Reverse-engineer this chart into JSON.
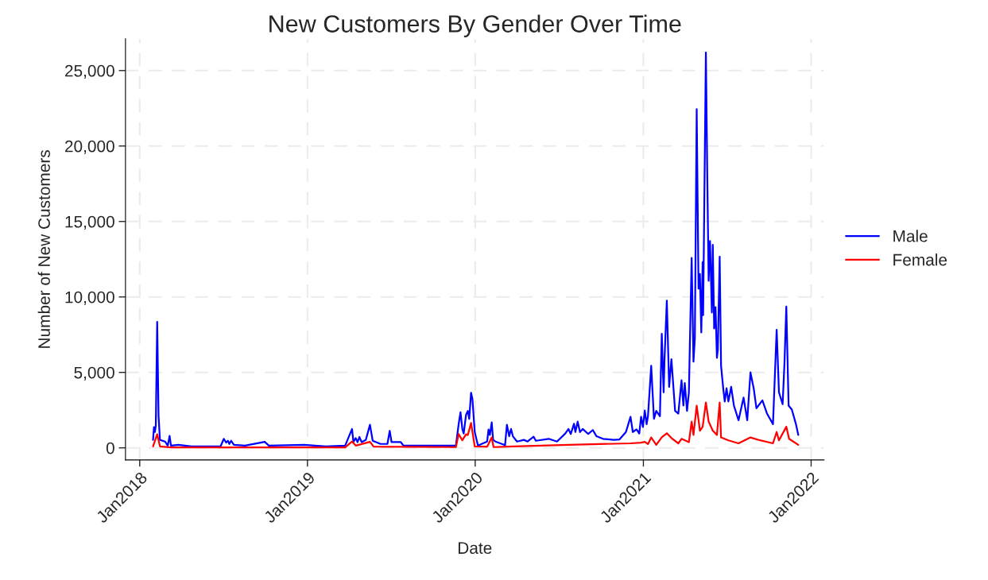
{
  "chart_data": {
    "type": "line",
    "title": "New Customers By Gender Over Time",
    "xlabel": "Date",
    "ylabel": "Number of New Customers",
    "xlim": [
      "2017-12-01",
      "2022-01-29"
    ],
    "xticks": [
      {
        "value": "2018-01-01",
        "label": "Jan2018"
      },
      {
        "value": "2019-01-01",
        "label": "Jan2019"
      },
      {
        "value": "2020-01-01",
        "label": "Jan2020"
      },
      {
        "value": "2021-01-01",
        "label": "Jan2021"
      },
      {
        "value": "2022-01-01",
        "label": "Jan2022"
      }
    ],
    "ylim": [
      -800,
      27100
    ],
    "yticks": [
      {
        "value": 0,
        "label": "0"
      },
      {
        "value": 5000,
        "label": "5,000"
      },
      {
        "value": 10000,
        "label": "10,000"
      },
      {
        "value": 15000,
        "label": "15,000"
      },
      {
        "value": 20000,
        "label": "20,000"
      },
      {
        "value": 25000,
        "label": "25,000"
      }
    ],
    "grid": true,
    "legend": "right",
    "line_style": "solid",
    "series": [
      {
        "name": "Male",
        "color": "#0000ff",
        "x": [
          "2018-01-30",
          "2018-02-01",
          "2018-02-03",
          "2018-02-05",
          "2018-02-08",
          "2018-02-11",
          "2018-02-14",
          "2018-02-25",
          "2018-03-03",
          "2018-03-07",
          "2018-03-10",
          "2018-03-26",
          "2018-04-24",
          "2018-06-26",
          "2018-07-03",
          "2018-07-08",
          "2018-07-12",
          "2018-07-15",
          "2018-07-19",
          "2018-07-25",
          "2018-08-18",
          "2018-09-30",
          "2018-10-09",
          "2018-12-25",
          "2019-02-10",
          "2019-03-24",
          "2019-04-08",
          "2019-04-11",
          "2019-04-16",
          "2019-04-20",
          "2019-04-24",
          "2019-04-29",
          "2019-05-08",
          "2019-05-17",
          "2019-05-23",
          "2019-06-09",
          "2019-06-24",
          "2019-06-29",
          "2019-07-03",
          "2019-07-23",
          "2019-07-29",
          "2019-11-20",
          "2019-11-26",
          "2019-11-30",
          "2019-12-04",
          "2019-12-07",
          "2019-12-12",
          "2019-12-16",
          "2019-12-19",
          "2019-12-23",
          "2019-12-26",
          "2019-12-31",
          "2020-01-07",
          "2020-01-27",
          "2020-01-30",
          "2020-02-02",
          "2020-02-06",
          "2020-02-09",
          "2020-02-14",
          "2020-03-06",
          "2020-03-10",
          "2020-03-15",
          "2020-03-19",
          "2020-03-23",
          "2020-04-01",
          "2020-04-16",
          "2020-04-24",
          "2020-05-07",
          "2020-05-12",
          "2020-06-09",
          "2020-06-27",
          "2020-07-15",
          "2020-07-22",
          "2020-07-27",
          "2020-08-03",
          "2020-08-06",
          "2020-08-11",
          "2020-08-16",
          "2020-08-22",
          "2020-09-03",
          "2020-09-13",
          "2020-09-21",
          "2020-10-05",
          "2020-10-29",
          "2020-11-10",
          "2020-11-24",
          "2020-12-04",
          "2020-12-09",
          "2020-12-17",
          "2020-12-23",
          "2020-12-27",
          "2020-12-31",
          "2021-01-04",
          "2021-01-08",
          "2021-01-11",
          "2021-01-18",
          "2021-01-24",
          "2021-01-29",
          "2021-02-06",
          "2021-02-10",
          "2021-02-14",
          "2021-02-16",
          "2021-02-21",
          "2021-02-26",
          "2021-03-03",
          "2021-03-11",
          "2021-03-18",
          "2021-03-25",
          "2021-03-29",
          "2021-04-01",
          "2021-04-06",
          "2021-04-10",
          "2021-04-16",
          "2021-04-20",
          "2021-04-23",
          "2021-04-27",
          "2021-05-01",
          "2021-05-04",
          "2021-05-07",
          "2021-05-10",
          "2021-05-11",
          "2021-05-17",
          "2021-05-20",
          "2021-05-23",
          "2021-05-26",
          "2021-05-30",
          "2021-06-01",
          "2021-06-04",
          "2021-06-07",
          "2021-06-10",
          "2021-06-12",
          "2021-06-16",
          "2021-06-19",
          "2021-06-24",
          "2021-06-27",
          "2021-07-01",
          "2021-07-05",
          "2021-07-11",
          "2021-07-17",
          "2021-07-27",
          "2021-08-07",
          "2021-08-15",
          "2021-08-22",
          "2021-08-29",
          "2021-09-04",
          "2021-09-17",
          "2021-09-27",
          "2021-10-10",
          "2021-10-18",
          "2021-10-23",
          "2021-10-31",
          "2021-11-04",
          "2021-11-08",
          "2021-11-13",
          "2021-11-20",
          "2021-11-29",
          "2021-12-04"
        ],
        "values": [
          530,
          1370,
          1050,
          1480,
          8350,
          2100,
          530,
          420,
          150,
          790,
          150,
          200,
          100,
          100,
          600,
          350,
          470,
          260,
          470,
          200,
          150,
          400,
          150,
          200,
          100,
          150,
          1250,
          400,
          650,
          380,
          720,
          380,
          530,
          1530,
          470,
          260,
          260,
          1130,
          380,
          380,
          150,
          150,
          1570,
          2360,
          1250,
          950,
          2180,
          2450,
          1920,
          3650,
          3240,
          1050,
          150,
          420,
          1220,
          860,
          1690,
          530,
          420,
          180,
          1530,
          770,
          1250,
          770,
          420,
          530,
          420,
          740,
          470,
          600,
          420,
          950,
          1250,
          920,
          1600,
          1050,
          1740,
          1050,
          1250,
          920,
          1180,
          770,
          600,
          530,
          560,
          1050,
          2060,
          1050,
          1230,
          950,
          2060,
          1390,
          2480,
          1570,
          2100,
          5440,
          1920,
          2450,
          2100,
          7560,
          3680,
          5880,
          9760,
          4040,
          5880,
          2450,
          2270,
          4480,
          2800,
          4300,
          2450,
          3680,
          12580,
          5710,
          7290,
          22450,
          10550,
          11520,
          7650,
          12310,
          8790,
          26200,
          18130,
          11070,
          13710,
          8970,
          13460,
          7910,
          9320,
          5970,
          6500,
          12670,
          5440,
          3860,
          3070,
          3950,
          3070,
          4040,
          2800,
          1830,
          3330,
          1830,
          5000,
          3950,
          2620,
          3150,
          2270,
          1570,
          7820,
          3680,
          2890,
          5620,
          9360,
          2800,
          2540,
          1570,
          860
        ]
      },
      {
        "name": "Female",
        "color": "#ff0000",
        "x": [
          "2018-01-30",
          "2018-02-08",
          "2018-02-14",
          "2018-03-10",
          "2019-03-24",
          "2019-04-08",
          "2019-04-16",
          "2019-05-17",
          "2019-05-25",
          "2019-11-20",
          "2019-11-26",
          "2019-12-04",
          "2019-12-12",
          "2019-12-16",
          "2019-12-23",
          "2019-12-31",
          "2020-01-27",
          "2020-02-06",
          "2020-02-10",
          "2020-03-10",
          "2020-07-22",
          "2020-12-04",
          "2020-12-27",
          "2021-01-04",
          "2021-01-11",
          "2021-01-18",
          "2021-01-29",
          "2021-02-10",
          "2021-02-21",
          "2021-03-03",
          "2021-03-18",
          "2021-03-25",
          "2021-04-10",
          "2021-04-16",
          "2021-04-20",
          "2021-04-27",
          "2021-05-04",
          "2021-05-10",
          "2021-05-17",
          "2021-05-23",
          "2021-06-01",
          "2021-06-10",
          "2021-06-16",
          "2021-06-19",
          "2021-07-05",
          "2021-07-27",
          "2021-08-22",
          "2021-09-12",
          "2021-10-10",
          "2021-10-18",
          "2021-10-23",
          "2021-11-08",
          "2021-11-14",
          "2021-12-04"
        ],
        "values": [
          100,
          900,
          100,
          30,
          30,
          420,
          150,
          400,
          80,
          50,
          920,
          500,
          900,
          850,
          1650,
          100,
          80,
          690,
          50,
          80,
          200,
          300,
          350,
          400,
          250,
          690,
          200,
          700,
          970,
          650,
          300,
          600,
          380,
          1740,
          860,
          2800,
          1140,
          1400,
          3010,
          1740,
          1140,
          860,
          3010,
          690,
          500,
          300,
          690,
          500,
          300,
          1050,
          500,
          1400,
          600,
          200
        ]
      }
    ]
  }
}
